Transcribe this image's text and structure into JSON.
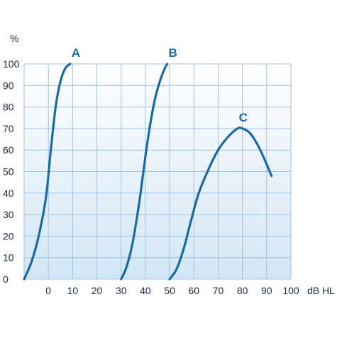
{
  "chart_data": {
    "type": "line",
    "y_unit": "%",
    "x_unit": "dB HL",
    "x_ticks": [
      0,
      10,
      20,
      30,
      40,
      50,
      60,
      70,
      80,
      90,
      100
    ],
    "y_ticks": [
      0,
      10,
      20,
      30,
      40,
      50,
      60,
      70,
      80,
      90,
      100
    ],
    "xlim": [
      -10,
      100
    ],
    "ylim": [
      0,
      100
    ],
    "grid": true,
    "series_color": "#1b6aa8",
    "grid_color": "#9cc4e4",
    "series": [
      {
        "label": "A",
        "x": [
          -10,
          -7,
          -4,
          -1,
          1,
          3,
          5,
          7,
          9
        ],
        "y": [
          0,
          8,
          20,
          38,
          60,
          80,
          92,
          98,
          100
        ]
      },
      {
        "label": "B",
        "x": [
          30,
          32,
          34,
          36,
          38,
          40,
          42,
          44,
          46,
          48,
          49
        ],
        "y": [
          0,
          5,
          13,
          25,
          40,
          57,
          72,
          84,
          92,
          98,
          100
        ]
      },
      {
        "label": "C",
        "x": [
          50,
          53,
          56,
          59,
          62,
          66,
          70,
          74,
          78,
          80,
          83,
          86,
          89,
          92
        ],
        "y": [
          0,
          5,
          15,
          28,
          40,
          51,
          60,
          66,
          70,
          70,
          68,
          63,
          56,
          48
        ]
      }
    ]
  }
}
